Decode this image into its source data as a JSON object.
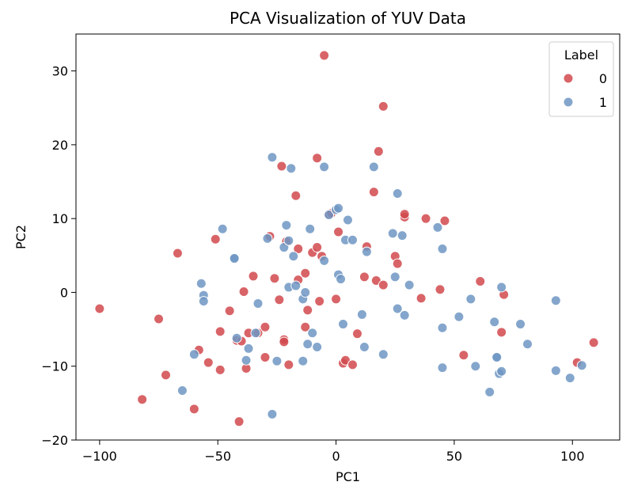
{
  "chart_data": {
    "type": "scatter",
    "title": "PCA Visualization of YUV Data",
    "xlabel": "PC1",
    "ylabel": "PC2",
    "xlim": [
      -110,
      120
    ],
    "ylim": [
      -20,
      35
    ],
    "xticks": [
      -100,
      -50,
      0,
      50,
      100
    ],
    "yticks": [
      -20,
      -10,
      0,
      10,
      20,
      30
    ],
    "grid": false,
    "legend": {
      "title": "Label",
      "placement": "top-right"
    },
    "series": [
      {
        "name": "0",
        "color": "#d1494e",
        "points": [
          [
            -100,
            -2.2
          ],
          [
            -82,
            -14.5
          ],
          [
            -75,
            -3.6
          ],
          [
            -72,
            -11.2
          ],
          [
            -67,
            5.3
          ],
          [
            -60,
            -15.8
          ],
          [
            -58,
            -7.8
          ],
          [
            -54,
            -9.5
          ],
          [
            -51,
            7.2
          ],
          [
            -49,
            -10.5
          ],
          [
            -49,
            -5.3
          ],
          [
            -45,
            -2.5
          ],
          [
            -42,
            -6.5
          ],
          [
            -41,
            -17.5
          ],
          [
            -40,
            -6.6
          ],
          [
            -39,
            0.1
          ],
          [
            -38,
            -10.3
          ],
          [
            -37,
            -5.5
          ],
          [
            -35,
            2.2
          ],
          [
            -33,
            -5.5
          ],
          [
            -30,
            -4.7
          ],
          [
            -30,
            -8.8
          ],
          [
            -28,
            7.6
          ],
          [
            -26,
            1.9
          ],
          [
            -24,
            -1.0
          ],
          [
            -23,
            17.1
          ],
          [
            -22,
            -6.4
          ],
          [
            -22,
            -6.7
          ],
          [
            -21,
            6.9
          ],
          [
            -20,
            -9.8
          ],
          [
            -17,
            13.1
          ],
          [
            -16,
            1.7
          ],
          [
            -16,
            5.9
          ],
          [
            -13,
            2.6
          ],
          [
            -13,
            -4.7
          ],
          [
            -12,
            -2.4
          ],
          [
            -10,
            5.4
          ],
          [
            -8,
            18.2
          ],
          [
            -8,
            6.1
          ],
          [
            -7,
            -1.2
          ],
          [
            -6,
            4.9
          ],
          [
            -5,
            32.1
          ],
          [
            -3,
            10.6
          ],
          [
            -2,
            10.7
          ],
          [
            0,
            -0.9
          ],
          [
            1,
            8.2
          ],
          [
            3,
            -9.6
          ],
          [
            4,
            -9.2
          ],
          [
            7,
            -9.8
          ],
          [
            9,
            -5.6
          ],
          [
            12,
            2.1
          ],
          [
            13,
            6.2
          ],
          [
            16,
            13.6
          ],
          [
            17,
            1.6
          ],
          [
            18,
            19.1
          ],
          [
            20,
            25.2
          ],
          [
            20,
            1.0
          ],
          [
            25,
            4.9
          ],
          [
            26,
            3.9
          ],
          [
            29,
            10.2
          ],
          [
            29,
            10.6
          ],
          [
            36,
            -0.8
          ],
          [
            38,
            10.0
          ],
          [
            44,
            0.4
          ],
          [
            46,
            9.7
          ],
          [
            54,
            -8.5
          ],
          [
            61,
            1.5
          ],
          [
            70,
            -5.4
          ],
          [
            71,
            -0.3
          ],
          [
            102,
            -9.5
          ],
          [
            109,
            -6.8
          ]
        ]
      },
      {
        "name": "1",
        "color": "#6f97c3",
        "points": [
          [
            -65,
            -13.3
          ],
          [
            -60,
            -8.4
          ],
          [
            -57,
            1.2
          ],
          [
            -56,
            -0.4
          ],
          [
            -56,
            -1.2
          ],
          [
            -48,
            8.6
          ],
          [
            -43,
            4.7
          ],
          [
            -43,
            4.6
          ],
          [
            -42,
            -6.2
          ],
          [
            -38,
            -9.2
          ],
          [
            -37,
            -7.6
          ],
          [
            -34,
            -5.5
          ],
          [
            -33,
            -1.5
          ],
          [
            -29,
            7.3
          ],
          [
            -27,
            -16.5
          ],
          [
            -27,
            18.3
          ],
          [
            -25,
            -9.3
          ],
          [
            -22,
            6.1
          ],
          [
            -21,
            9.1
          ],
          [
            -20,
            7.0
          ],
          [
            -20,
            0.7
          ],
          [
            -19,
            16.8
          ],
          [
            -18,
            4.9
          ],
          [
            -17,
            0.9
          ],
          [
            -14,
            -9.3
          ],
          [
            -14,
            -0.9
          ],
          [
            -13,
            0.0
          ],
          [
            -12,
            -7.0
          ],
          [
            -11,
            8.6
          ],
          [
            -10,
            -5.5
          ],
          [
            -8,
            -7.4
          ],
          [
            -5,
            4.3
          ],
          [
            -5,
            17.0
          ],
          [
            -3,
            10.5
          ],
          [
            0,
            11.2
          ],
          [
            1,
            11.4
          ],
          [
            1,
            2.4
          ],
          [
            2,
            1.8
          ],
          [
            3,
            -4.3
          ],
          [
            4,
            7.1
          ],
          [
            5,
            9.8
          ],
          [
            7,
            7.1
          ],
          [
            11,
            -3.0
          ],
          [
            12,
            -7.4
          ],
          [
            13,
            5.5
          ],
          [
            16,
            17.0
          ],
          [
            20,
            -8.4
          ],
          [
            24,
            8.0
          ],
          [
            25,
            2.1
          ],
          [
            26,
            13.4
          ],
          [
            26,
            -2.2
          ],
          [
            28,
            7.7
          ],
          [
            29,
            -3.1
          ],
          [
            31,
            1.0
          ],
          [
            43,
            8.8
          ],
          [
            45,
            5.9
          ],
          [
            45,
            -4.8
          ],
          [
            45,
            -10.2
          ],
          [
            52,
            -3.3
          ],
          [
            57,
            -0.9
          ],
          [
            59,
            -10.0
          ],
          [
            65,
            -13.5
          ],
          [
            67,
            -4.0
          ],
          [
            68,
            -8.7
          ],
          [
            68,
            -8.8
          ],
          [
            69,
            -11.0
          ],
          [
            70,
            -10.7
          ],
          [
            70,
            0.7
          ],
          [
            78,
            -4.3
          ],
          [
            81,
            -7.0
          ],
          [
            93,
            -10.6
          ],
          [
            93,
            -1.1
          ],
          [
            99,
            -11.6
          ],
          [
            104,
            -9.9
          ]
        ]
      }
    ]
  }
}
